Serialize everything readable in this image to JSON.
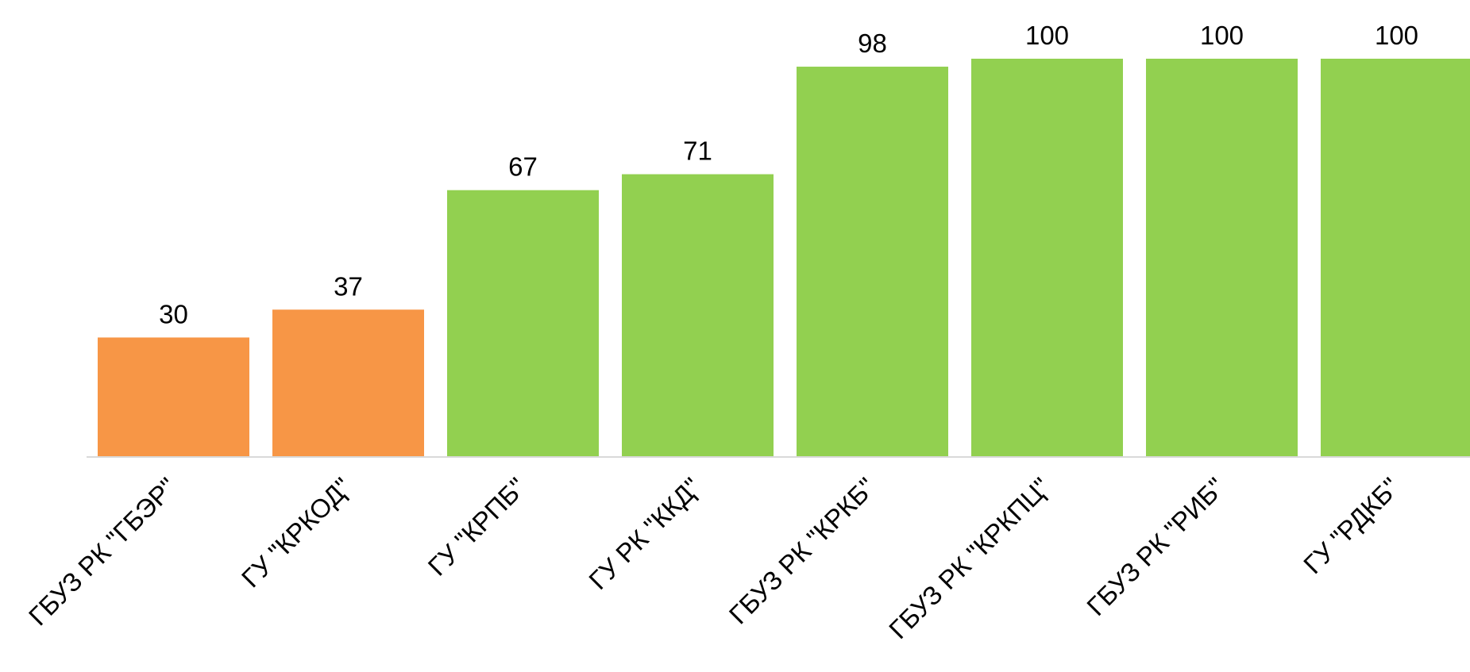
{
  "chart_data": {
    "type": "bar",
    "categories": [
      "ГБУЗ РК \"ГБЭР\"",
      "ГУ \"КРКОД\"",
      "ГУ \"КРПБ\"",
      "ГУ РК \"ККД\"",
      "ГБУЗ РК \"КРКБ\"",
      "ГБУЗ РК \"КРКПЦ\"",
      "ГБУЗ РК \"РИБ\"",
      "ГУ \"РДКБ\""
    ],
    "values": [
      30,
      37,
      67,
      71,
      98,
      100,
      100,
      100
    ],
    "colors": [
      "#f79646",
      "#f79646",
      "#92d050",
      "#92d050",
      "#92d050",
      "#92d050",
      "#92d050",
      "#92d050"
    ],
    "ylim": [
      0,
      100
    ]
  }
}
